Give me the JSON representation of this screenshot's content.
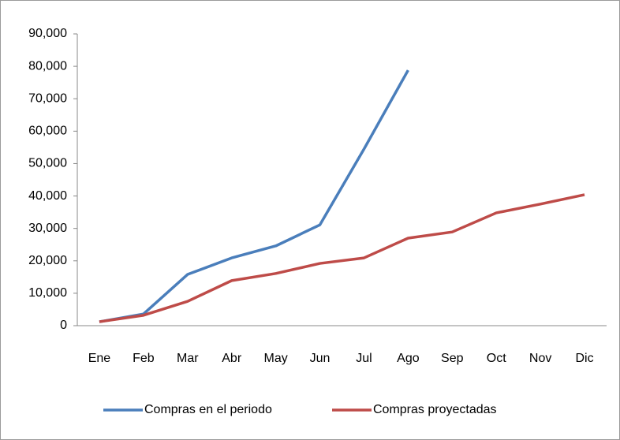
{
  "chart_data": {
    "type": "line",
    "categories": [
      "Ene",
      "Feb",
      "Mar",
      "Abr",
      "May",
      "Jun",
      "Jul",
      "Ago",
      "Sep",
      "Oct",
      "Nov",
      "Dic"
    ],
    "series": [
      {
        "name": "Compras en el periodo",
        "color": "#4a7ebb",
        "values": [
          1200,
          3600,
          15800,
          20900,
          24600,
          31100,
          54500,
          78800,
          null,
          null,
          null,
          null
        ]
      },
      {
        "name": "Compras proyectadas",
        "color": "#be4b48",
        "values": [
          1200,
          3200,
          7500,
          13900,
          16100,
          19200,
          20900,
          27000,
          28900,
          34800,
          37500,
          40400
        ]
      }
    ],
    "ylim": [
      0,
      90000
    ],
    "yticks": [
      0,
      {
        "value": 10000,
        "label": "10,000"
      },
      {
        "value": 20000,
        "label": "20,000"
      },
      {
        "value": 30000,
        "label": "30,000"
      },
      {
        "value": 40000,
        "label": "40,000"
      },
      {
        "value": 50000,
        "label": "50,000"
      },
      {
        "value": 60000,
        "label": "60,000"
      },
      {
        "value": 70000,
        "label": "70,000"
      },
      {
        "value": 80000,
        "label": "80,000"
      },
      {
        "value": 90000,
        "label": "90,000"
      }
    ],
    "grid": false,
    "legend": "bottom"
  }
}
